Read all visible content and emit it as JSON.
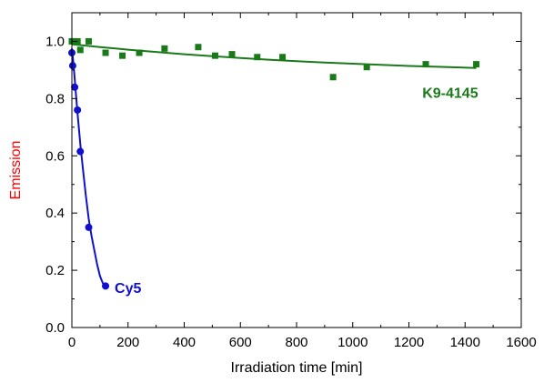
{
  "chart_data": {
    "type": "scatter",
    "xlabel": "Irradiation time [min]",
    "ylabel": "Emission",
    "xlim": [
      0,
      1600
    ],
    "ylim": [
      0.0,
      1.1
    ],
    "x_ticks": [
      0,
      200,
      400,
      600,
      800,
      1000,
      1200,
      1400,
      1600
    ],
    "y_ticks": [
      0.0,
      0.2,
      0.4,
      0.6,
      0.8,
      1.0
    ],
    "grid": false,
    "series": [
      {
        "name": "K9-4145",
        "color": "#1a7a1a",
        "marker": "square",
        "points": [
          [
            0,
            1.0
          ],
          [
            10,
            1.0
          ],
          [
            20,
            1.0
          ],
          [
            30,
            0.97
          ],
          [
            60,
            1.0
          ],
          [
            120,
            0.96
          ],
          [
            180,
            0.95
          ],
          [
            240,
            0.96
          ],
          [
            330,
            0.975
          ],
          [
            450,
            0.98
          ],
          [
            510,
            0.95
          ],
          [
            570,
            0.955
          ],
          [
            660,
            0.945
          ],
          [
            750,
            0.945
          ],
          [
            930,
            0.875
          ],
          [
            1050,
            0.91
          ],
          [
            1260,
            0.92
          ],
          [
            1440,
            0.92
          ]
        ],
        "fit": [
          [
            0,
            0.99
          ],
          [
            100,
            0.98
          ],
          [
            200,
            0.971
          ],
          [
            300,
            0.963
          ],
          [
            400,
            0.955
          ],
          [
            500,
            0.948
          ],
          [
            600,
            0.942
          ],
          [
            700,
            0.936
          ],
          [
            800,
            0.931
          ],
          [
            900,
            0.926
          ],
          [
            1000,
            0.922
          ],
          [
            1100,
            0.918
          ],
          [
            1200,
            0.914
          ],
          [
            1300,
            0.911
          ],
          [
            1440,
            0.907
          ]
        ]
      },
      {
        "name": "Cy5",
        "color": "#1010cc",
        "marker": "circle",
        "points": [
          [
            0,
            0.96
          ],
          [
            3,
            0.915
          ],
          [
            10,
            0.84
          ],
          [
            20,
            0.76
          ],
          [
            30,
            0.615
          ],
          [
            60,
            0.35
          ],
          [
            120,
            0.145
          ]
        ],
        "fit": [
          [
            0,
            0.975
          ],
          [
            5,
            0.93
          ],
          [
            10,
            0.87
          ],
          [
            15,
            0.81
          ],
          [
            20,
            0.75
          ],
          [
            30,
            0.64
          ],
          [
            40,
            0.55
          ],
          [
            50,
            0.46
          ],
          [
            60,
            0.38
          ],
          [
            70,
            0.32
          ],
          [
            80,
            0.27
          ],
          [
            90,
            0.22
          ],
          [
            100,
            0.18
          ],
          [
            110,
            0.155
          ],
          [
            120,
            0.14
          ]
        ]
      }
    ],
    "axis_label_colors": {
      "x": "#000000",
      "y": "#ff0000"
    }
  }
}
